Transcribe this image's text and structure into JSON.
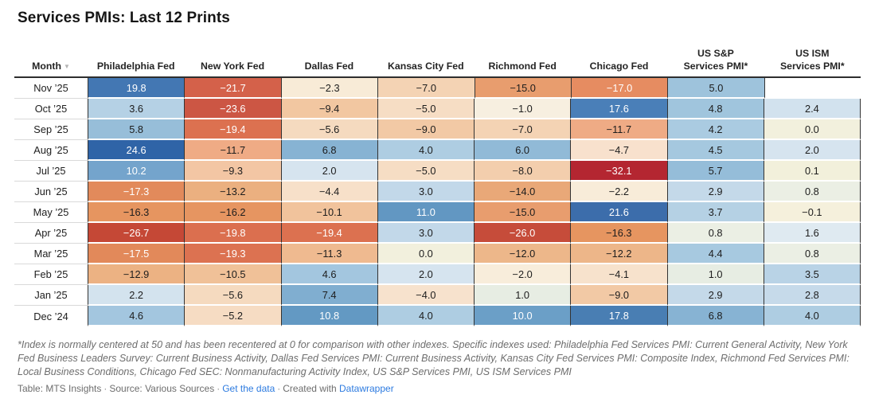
{
  "title": "Services PMIs: Last 12 Prints",
  "link_color": "#2d7be0",
  "table": {
    "month_header": "Month",
    "sort_icon": "▼",
    "columns": [
      {
        "key": "philadelphia-fed",
        "label": "Philadelphia Fed"
      },
      {
        "key": "new-york-fed",
        "label": "New York Fed"
      },
      {
        "key": "dallas-fed",
        "label": "Dallas Fed"
      },
      {
        "key": "kansas-city-fed",
        "label": "Kansas City Fed"
      },
      {
        "key": "richmond-fed",
        "label": "Richmond Fed"
      },
      {
        "key": "chicago-fed",
        "label": "Chicago Fed"
      },
      {
        "key": "us-sp-services-pmi",
        "label": "US S&P\nServices PMI*"
      },
      {
        "key": "us-ism-services-pmi",
        "label": "US ISM\nServices PMI*"
      }
    ],
    "rows": [
      {
        "month": "Nov ’25",
        "cells": [
          {
            "v": "19.8",
            "bg": "#4377b3",
            "fg": "#ffffff"
          },
          {
            "v": "−21.7",
            "bg": "#d4614a",
            "fg": "#ffffff"
          },
          {
            "v": "−2.3",
            "bg": "#f8ebd7",
            "fg": "#1d1d1d"
          },
          {
            "v": "−7.0",
            "bg": "#f4d3b4",
            "fg": "#1d1d1d"
          },
          {
            "v": "−15.0",
            "bg": "#e89d6e",
            "fg": "#1d1d1d"
          },
          {
            "v": "−17.0",
            "bg": "#e68c61",
            "fg": "#ffffff"
          },
          {
            "v": "5.0",
            "bg": "#9ec3dc",
            "fg": "#1d1d1d"
          },
          {
            "v": "",
            "bg": "#ffffff",
            "fg": "#1d1d1d"
          }
        ]
      },
      {
        "month": "Oct ’25",
        "cells": [
          {
            "v": "3.6",
            "bg": "#b5d1e5",
            "fg": "#1d1d1d"
          },
          {
            "v": "−23.6",
            "bg": "#cc5644",
            "fg": "#ffffff"
          },
          {
            "v": "−9.4",
            "bg": "#f2c7a1",
            "fg": "#1d1d1d"
          },
          {
            "v": "−5.0",
            "bg": "#f6ddc4",
            "fg": "#1d1d1d"
          },
          {
            "v": "−1.0",
            "bg": "#f7efe0",
            "fg": "#1d1d1d"
          },
          {
            "v": "17.6",
            "bg": "#4a7fb8",
            "fg": "#ffffff"
          },
          {
            "v": "4.8",
            "bg": "#a0c5dd",
            "fg": "#1d1d1d"
          },
          {
            "v": "2.4",
            "bg": "#d2e2ee",
            "fg": "#1d1d1d"
          }
        ]
      },
      {
        "month": "Sep ’25",
        "cells": [
          {
            "v": "5.8",
            "bg": "#97bed9",
            "fg": "#1d1d1d"
          },
          {
            "v": "−19.4",
            "bg": "#dc7150",
            "fg": "#ffffff"
          },
          {
            "v": "−5.6",
            "bg": "#f5dabf",
            "fg": "#1d1d1d"
          },
          {
            "v": "−9.0",
            "bg": "#f2c9a5",
            "fg": "#1d1d1d"
          },
          {
            "v": "−7.0",
            "bg": "#f4d3b4",
            "fg": "#1d1d1d"
          },
          {
            "v": "−11.7",
            "bg": "#efab85",
            "fg": "#1d1d1d"
          },
          {
            "v": "4.2",
            "bg": "#aacbe1",
            "fg": "#1d1d1d"
          },
          {
            "v": "0.0",
            "bg": "#f2f0dd",
            "fg": "#1d1d1d"
          }
        ]
      },
      {
        "month": "Aug ’25",
        "cells": [
          {
            "v": "24.6",
            "bg": "#2f64a7",
            "fg": "#ffffff"
          },
          {
            "v": "−11.7",
            "bg": "#efab85",
            "fg": "#1d1d1d"
          },
          {
            "v": "6.8",
            "bg": "#87b3d3",
            "fg": "#1d1d1d"
          },
          {
            "v": "4.0",
            "bg": "#aecde2",
            "fg": "#1d1d1d"
          },
          {
            "v": "6.0",
            "bg": "#91bad7",
            "fg": "#1d1d1d"
          },
          {
            "v": "−4.7",
            "bg": "#f8e1cd",
            "fg": "#1d1d1d"
          },
          {
            "v": "4.5",
            "bg": "#a5c8df",
            "fg": "#1d1d1d"
          },
          {
            "v": "2.0",
            "bg": "#d6e4ef",
            "fg": "#1d1d1d"
          }
        ]
      },
      {
        "month": "Jul ’25",
        "cells": [
          {
            "v": "10.2",
            "bg": "#74a4cc",
            "fg": "#ffffff"
          },
          {
            "v": "−9.3",
            "bg": "#f3c6a4",
            "fg": "#1d1d1d"
          },
          {
            "v": "2.0",
            "bg": "#d6e4ef",
            "fg": "#1d1d1d"
          },
          {
            "v": "−5.0",
            "bg": "#f6ddc4",
            "fg": "#1d1d1d"
          },
          {
            "v": "−8.0",
            "bg": "#f3cead",
            "fg": "#1d1d1d"
          },
          {
            "v": "−32.1",
            "bg": "#b42631",
            "fg": "#ffffff"
          },
          {
            "v": "5.7",
            "bg": "#95bdd9",
            "fg": "#1d1d1d"
          },
          {
            "v": "0.1",
            "bg": "#f2f0db",
            "fg": "#1d1d1d"
          }
        ]
      },
      {
        "month": "Jun ’25",
        "cells": [
          {
            "v": "−17.3",
            "bg": "#e28a5b",
            "fg": "#ffffff"
          },
          {
            "v": "−13.2",
            "bg": "#ebb080",
            "fg": "#1d1d1d"
          },
          {
            "v": "−4.4",
            "bg": "#f7e0c9",
            "fg": "#1d1d1d"
          },
          {
            "v": "3.0",
            "bg": "#c2d8e9",
            "fg": "#1d1d1d"
          },
          {
            "v": "−14.0",
            "bg": "#e9a878",
            "fg": "#1d1d1d"
          },
          {
            "v": "−2.2",
            "bg": "#f8ecd9",
            "fg": "#1d1d1d"
          },
          {
            "v": "2.9",
            "bg": "#c4d9e9",
            "fg": "#1d1d1d"
          },
          {
            "v": "0.8",
            "bg": "#ebefe4",
            "fg": "#1d1d1d"
          }
        ]
      },
      {
        "month": "May ’25",
        "cells": [
          {
            "v": "−16.3",
            "bg": "#e69560",
            "fg": "#1d1d1d"
          },
          {
            "v": "−16.2",
            "bg": "#e69561",
            "fg": "#1d1d1d"
          },
          {
            "v": "−10.1",
            "bg": "#f1c39c",
            "fg": "#1d1d1d"
          },
          {
            "v": "11.0",
            "bg": "#6297c2",
            "fg": "#ffffff"
          },
          {
            "v": "−15.0",
            "bg": "#e89d6e",
            "fg": "#1d1d1d"
          },
          {
            "v": "21.6",
            "bg": "#3c6dab",
            "fg": "#ffffff"
          },
          {
            "v": "3.7",
            "bg": "#b5d1e4",
            "fg": "#1d1d1d"
          },
          {
            "v": "−0.1",
            "bg": "#f5f0dc",
            "fg": "#1d1d1d"
          }
        ]
      },
      {
        "month": "Apr ’25",
        "cells": [
          {
            "v": "−26.7",
            "bg": "#c54836",
            "fg": "#ffffff"
          },
          {
            "v": "−19.8",
            "bg": "#db6f4f",
            "fg": "#ffffff"
          },
          {
            "v": "−19.4",
            "bg": "#dc7150",
            "fg": "#ffffff"
          },
          {
            "v": "3.0",
            "bg": "#c2d8e9",
            "fg": "#1d1d1d"
          },
          {
            "v": "−26.0",
            "bg": "#c64c3a",
            "fg": "#ffffff"
          },
          {
            "v": "−16.3",
            "bg": "#e69560",
            "fg": "#1d1d1d"
          },
          {
            "v": "0.8",
            "bg": "#ebefe4",
            "fg": "#1d1d1d"
          },
          {
            "v": "1.6",
            "bg": "#dfeaf1",
            "fg": "#1d1d1d"
          }
        ]
      },
      {
        "month": "Mar ’25",
        "cells": [
          {
            "v": "−17.5",
            "bg": "#e2895a",
            "fg": "#ffffff"
          },
          {
            "v": "−19.3",
            "bg": "#dc7251",
            "fg": "#ffffff"
          },
          {
            "v": "−11.3",
            "bg": "#efba90",
            "fg": "#1d1d1d"
          },
          {
            "v": "0.0",
            "bg": "#f2f0dd",
            "fg": "#1d1d1d"
          },
          {
            "v": "−12.0",
            "bg": "#edb78a",
            "fg": "#1d1d1d"
          },
          {
            "v": "−12.2",
            "bg": "#edb689",
            "fg": "#1d1d1d"
          },
          {
            "v": "4.4",
            "bg": "#a7c9e0",
            "fg": "#1d1d1d"
          },
          {
            "v": "0.8",
            "bg": "#ebefe4",
            "fg": "#1d1d1d"
          }
        ]
      },
      {
        "month": "Feb ’25",
        "cells": [
          {
            "v": "−12.9",
            "bg": "#ecb283",
            "fg": "#1d1d1d"
          },
          {
            "v": "−10.5",
            "bg": "#f0c198",
            "fg": "#1d1d1d"
          },
          {
            "v": "4.6",
            "bg": "#a3c6df",
            "fg": "#1d1d1d"
          },
          {
            "v": "2.0",
            "bg": "#d6e4ef",
            "fg": "#1d1d1d"
          },
          {
            "v": "−2.0",
            "bg": "#f8eddb",
            "fg": "#1d1d1d"
          },
          {
            "v": "−4.1",
            "bg": "#f7e2cc",
            "fg": "#1d1d1d"
          },
          {
            "v": "1.0",
            "bg": "#e7ede3",
            "fg": "#1d1d1d"
          },
          {
            "v": "3.5",
            "bg": "#b9d3e6",
            "fg": "#1d1d1d"
          }
        ]
      },
      {
        "month": "Jan ’25",
        "cells": [
          {
            "v": "2.2",
            "bg": "#d3e3ee",
            "fg": "#1d1d1d"
          },
          {
            "v": "−5.6",
            "bg": "#f5dabf",
            "fg": "#1d1d1d"
          },
          {
            "v": "7.4",
            "bg": "#80aed0",
            "fg": "#1d1d1d"
          },
          {
            "v": "−4.0",
            "bg": "#f7e2cd",
            "fg": "#1d1d1d"
          },
          {
            "v": "1.0",
            "bg": "#e7ede3",
            "fg": "#1d1d1d"
          },
          {
            "v": "−9.0",
            "bg": "#f2c9a5",
            "fg": "#1d1d1d"
          },
          {
            "v": "2.9",
            "bg": "#c4d9e9",
            "fg": "#1d1d1d"
          },
          {
            "v": "2.8",
            "bg": "#c6daea",
            "fg": "#1d1d1d"
          }
        ]
      },
      {
        "month": "Dec ’24",
        "cells": [
          {
            "v": "4.6",
            "bg": "#a3c6df",
            "fg": "#1d1d1d"
          },
          {
            "v": "−5.2",
            "bg": "#f6dcc3",
            "fg": "#1d1d1d"
          },
          {
            "v": "10.8",
            "bg": "#6399c3",
            "fg": "#ffffff"
          },
          {
            "v": "4.0",
            "bg": "#aecde2",
            "fg": "#1d1d1d"
          },
          {
            "v": "10.0",
            "bg": "#6b9fc7",
            "fg": "#ffffff"
          },
          {
            "v": "17.8",
            "bg": "#497eb3",
            "fg": "#ffffff"
          },
          {
            "v": "6.8",
            "bg": "#87b3d3",
            "fg": "#1d1d1d"
          },
          {
            "v": "4.0",
            "bg": "#aecde2",
            "fg": "#1d1d1d"
          }
        ]
      }
    ]
  },
  "chart_data": {
    "type": "heatmap",
    "title": "Services PMIs: Last 12 Prints",
    "categories": [
      "Nov '25",
      "Oct '25",
      "Sep '25",
      "Aug '25",
      "Jul '25",
      "Jun '25",
      "May '25",
      "Apr '25",
      "Mar '25",
      "Feb '25",
      "Jan '25",
      "Dec '24"
    ],
    "series": [
      {
        "name": "Philadelphia Fed",
        "values": [
          19.8,
          3.6,
          5.8,
          24.6,
          10.2,
          -17.3,
          -16.3,
          -26.7,
          -17.5,
          -12.9,
          2.2,
          4.6
        ]
      },
      {
        "name": "New York Fed",
        "values": [
          -21.7,
          -23.6,
          -19.4,
          -11.7,
          -9.3,
          -13.2,
          -16.2,
          -19.8,
          -19.3,
          -10.5,
          -5.6,
          -5.2
        ]
      },
      {
        "name": "Dallas Fed",
        "values": [
          -2.3,
          -9.4,
          -5.6,
          6.8,
          2.0,
          -4.4,
          -10.1,
          -19.4,
          -11.3,
          4.6,
          7.4,
          10.8
        ]
      },
      {
        "name": "Kansas City Fed",
        "values": [
          -7.0,
          -5.0,
          -9.0,
          4.0,
          -5.0,
          3.0,
          11.0,
          3.0,
          0.0,
          2.0,
          -4.0,
          4.0
        ]
      },
      {
        "name": "Richmond Fed",
        "values": [
          -15.0,
          -1.0,
          -7.0,
          6.0,
          -8.0,
          -14.0,
          -15.0,
          -26.0,
          -12.0,
          -2.0,
          1.0,
          10.0
        ]
      },
      {
        "name": "Chicago Fed",
        "values": [
          -17.0,
          17.6,
          -11.7,
          -4.7,
          -32.1,
          -2.2,
          21.6,
          -16.3,
          -12.2,
          -4.1,
          -9.0,
          17.8
        ]
      },
      {
        "name": "US S&P Services PMI*",
        "values": [
          5.0,
          4.8,
          4.2,
          4.5,
          5.7,
          2.9,
          3.7,
          0.8,
          4.4,
          1.0,
          2.9,
          6.8
        ]
      },
      {
        "name": "US ISM Services PMI*",
        "values": [
          null,
          2.4,
          0.0,
          2.0,
          0.1,
          0.8,
          -0.1,
          1.6,
          0.8,
          3.5,
          2.8,
          4.0
        ]
      }
    ],
    "color_scale": {
      "negative": "#b42631",
      "center": "#f4f0dc",
      "positive": "#2f64a7"
    }
  },
  "footnote": "*Index is normally centered at 50 and has been recentered at 0 for comparison with other indexes. Specific indexes used: Philadelphia Fed Services PMI: Current General Activity, New York Fed Business Leaders Survey: Current Business Activity, Dallas Fed Services PMI: Current Business Activity, Kansas City Fed Services PMI: Composite Index, Richmond Fed Services PMI: Local Business Conditions, Chicago Fed SEC: Nonmanufacturing Activity Index, US S&P Services PMI, US ISM Services PMI",
  "attribution": {
    "table": "Table: MTS Insights",
    "sep": "·",
    "source": "Source: Various Sources",
    "get_data": "Get the data",
    "created_with": "Created with",
    "datawrapper": "Datawrapper"
  }
}
